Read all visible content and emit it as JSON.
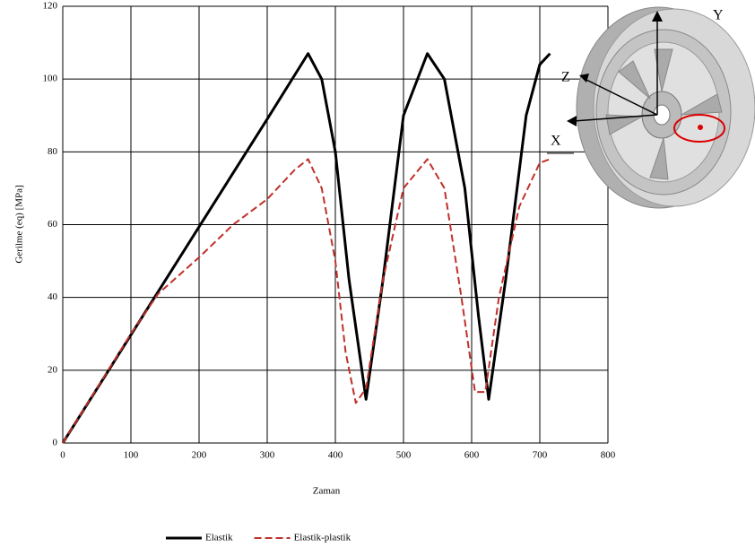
{
  "chart_data": {
    "type": "line",
    "x_label": "Zaman",
    "y_label": "Gerilme (eq) [MPa]",
    "xlim": [
      0,
      800
    ],
    "xticks": [
      0,
      100,
      200,
      300,
      400,
      500,
      600,
      700,
      800
    ],
    "ylim": [
      0,
      120
    ],
    "yticks": [
      0,
      20,
      40,
      60,
      80,
      100,
      120
    ],
    "grid": true,
    "legend": "bottom",
    "series": [
      {
        "name": "Elastik",
        "color": "#000000",
        "dash": "solid",
        "x": [
          0,
          100,
          200,
          300,
          360,
          380,
          400,
          420,
          445,
          470,
          500,
          535,
          560,
          590,
          610,
          625,
          650,
          680,
          700,
          715
        ],
        "values": [
          0,
          29.7,
          59.4,
          89,
          107,
          100,
          80,
          45,
          12,
          45,
          90,
          107,
          100,
          70,
          35,
          12,
          45,
          90,
          104,
          107
        ]
      },
      {
        "name": "Elastik-plastik",
        "color": "#c0302a",
        "dash": "dashed",
        "x": [
          0,
          100,
          140,
          200,
          250,
          300,
          340,
          360,
          380,
          400,
          415,
          430,
          445,
          470,
          500,
          535,
          560,
          585,
          605,
          620,
          640,
          670,
          700,
          715
        ],
        "values": [
          0,
          30,
          41,
          51,
          60,
          67,
          75,
          78,
          70,
          50,
          25,
          11,
          15,
          45,
          70,
          78,
          70,
          40,
          14,
          14,
          40,
          65,
          77,
          78
        ]
      }
    ],
    "annotations": [
      "Y",
      "Z",
      "X"
    ]
  }
}
